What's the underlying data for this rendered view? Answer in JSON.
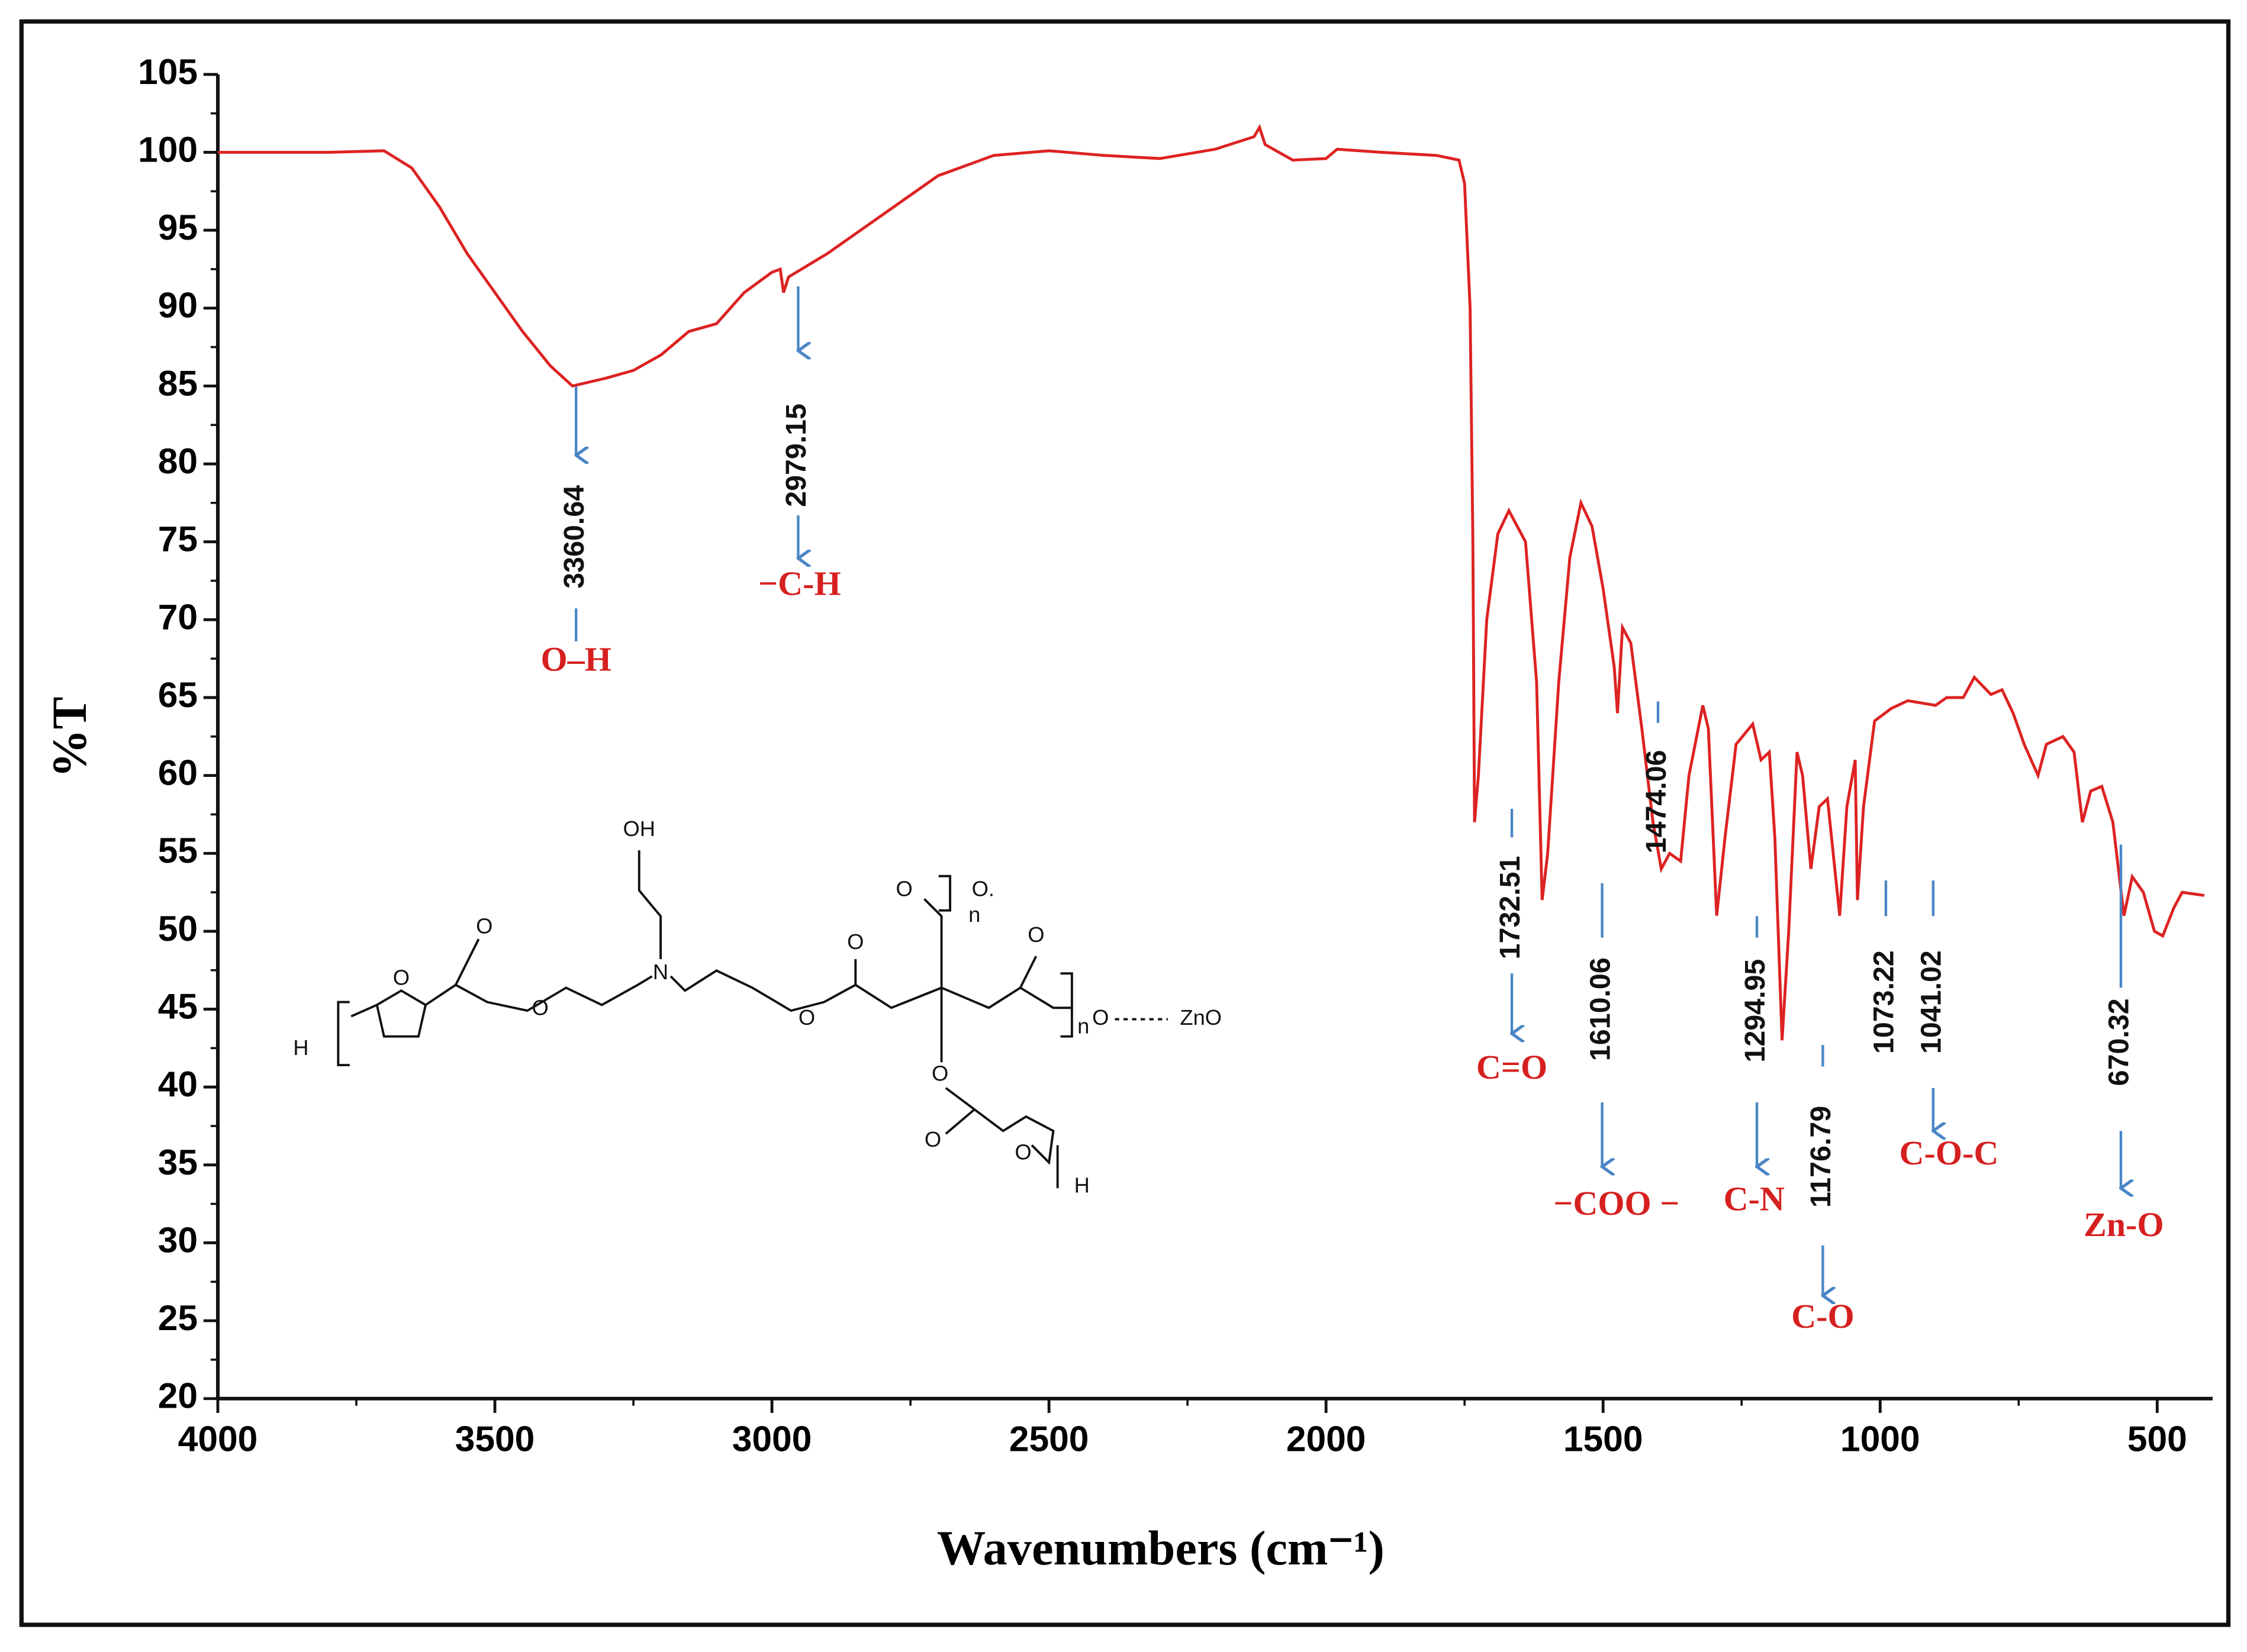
{
  "chart_data": {
    "type": "line",
    "xlabel": "Wavenumbers (cm⁻¹)",
    "ylabel": "%T",
    "xlim": [
      4000,
      400
    ],
    "ylim": [
      20,
      105
    ],
    "xticks": [
      4000,
      3500,
      3000,
      2500,
      2000,
      1500,
      1000,
      500
    ],
    "yticks": [
      20,
      25,
      30,
      35,
      40,
      45,
      50,
      55,
      60,
      65,
      70,
      75,
      80,
      85,
      90,
      95,
      100,
      105
    ],
    "color": "#dd2222",
    "x": [
      4000,
      3800,
      3700,
      3650,
      3600,
      3550,
      3500,
      3450,
      3400,
      3360,
      3300,
      3250,
      3200,
      3150,
      3100,
      3050,
      3000,
      2985,
      2979,
      2970,
      2900,
      2800,
      2700,
      2600,
      2500,
      2400,
      2300,
      2200,
      2130,
      2120,
      2110,
      2060,
      2000,
      1980,
      1900,
      1800,
      1760,
      1750,
      1740,
      1735,
      1732,
      1725,
      1710,
      1690,
      1670,
      1640,
      1620,
      1610,
      1600,
      1580,
      1560,
      1540,
      1520,
      1500,
      1480,
      1474,
      1465,
      1450,
      1430,
      1410,
      1395,
      1380,
      1360,
      1345,
      1320,
      1310,
      1295,
      1280,
      1260,
      1230,
      1215,
      1200,
      1190,
      1177,
      1165,
      1150,
      1140,
      1125,
      1110,
      1095,
      1073,
      1060,
      1045,
      1041,
      1030,
      1010,
      980,
      950,
      900,
      880,
      850,
      830,
      800,
      780,
      760,
      740,
      715,
      700,
      670,
      650,
      635,
      620,
      600,
      580,
      560,
      545,
      525,
      505,
      490,
      470,
      455,
      415
    ],
    "values": [
      100,
      100,
      100.1,
      99,
      96.5,
      93.5,
      91,
      88.5,
      86.3,
      85,
      85.5,
      86,
      87,
      88.5,
      89,
      91,
      92.3,
      92.5,
      91,
      92,
      93.5,
      96,
      98.5,
      99.8,
      100.1,
      99.8,
      99.6,
      100.2,
      101,
      101.6,
      100.5,
      99.5,
      99.6,
      100.2,
      100,
      99.8,
      99.5,
      98,
      90,
      75,
      57,
      60,
      70,
      75.5,
      77,
      75,
      66,
      52,
      55,
      66,
      74,
      77.5,
      76,
      72,
      67,
      64,
      69.5,
      68.5,
      63,
      57,
      54,
      55,
      54.5,
      60,
      64.5,
      63,
      51,
      56,
      62,
      63.3,
      61,
      61.5,
      56,
      43,
      50,
      61.5,
      60,
      54,
      58,
      58.5,
      51,
      58,
      61,
      52,
      58,
      63.5,
      64.3,
      64.8,
      64.5,
      65,
      65,
      66.3,
      65.2,
      65.5,
      64,
      62,
      60,
      62,
      62.5,
      61.5,
      57,
      59,
      59.3,
      57,
      51,
      53.5,
      52.5,
      50,
      49.7,
      51.5,
      52.5,
      52.3
    ],
    "annotations": [
      {
        "text": "3360.64",
        "label": "O–H"
      },
      {
        "text": "2979.15",
        "label": "−C-H"
      },
      {
        "text": "1732.51",
        "label": "C=O"
      },
      {
        "text": "1610.06",
        "label": "−COO −"
      },
      {
        "text": "1474.06"
      },
      {
        "text": "1294.95",
        "label": "C-N"
      },
      {
        "text": "1176.79",
        "label": "C-O"
      },
      {
        "text": "1073.22"
      },
      {
        "text": "1041.02",
        "label": "C-O-C"
      },
      {
        "text": "670.32",
        "label": "Zn-O"
      }
    ]
  },
  "structure": {
    "labels": [
      "H",
      "O",
      "O",
      "O",
      "N",
      "OH",
      "O",
      "O",
      "O",
      "n",
      "O.",
      "O",
      "n",
      "O",
      "ZnO",
      "O",
      "O",
      "O",
      "H"
    ]
  }
}
